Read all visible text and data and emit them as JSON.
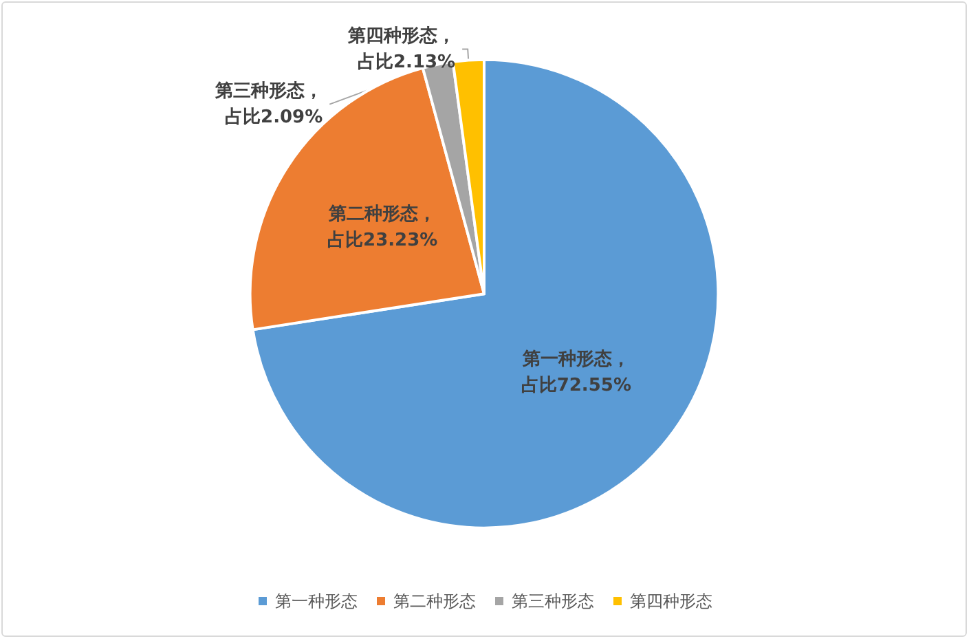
{
  "chart_data": {
    "type": "pie",
    "categories": [
      "第一种形态",
      "第二种形态",
      "第三种形态",
      "第四种形态"
    ],
    "values": [
      72.55,
      23.23,
      2.09,
      2.13
    ],
    "colors": [
      "#5b9bd5",
      "#ed7d31",
      "#a5a5a5",
      "#ffc000"
    ],
    "value_labels": [
      "第一种形态，占比72.55%",
      "第二种形态，占比23.23%",
      "第三种形态，占比2.09%",
      "第四种形态，占比2.13%"
    ],
    "legend": "bottom"
  }
}
